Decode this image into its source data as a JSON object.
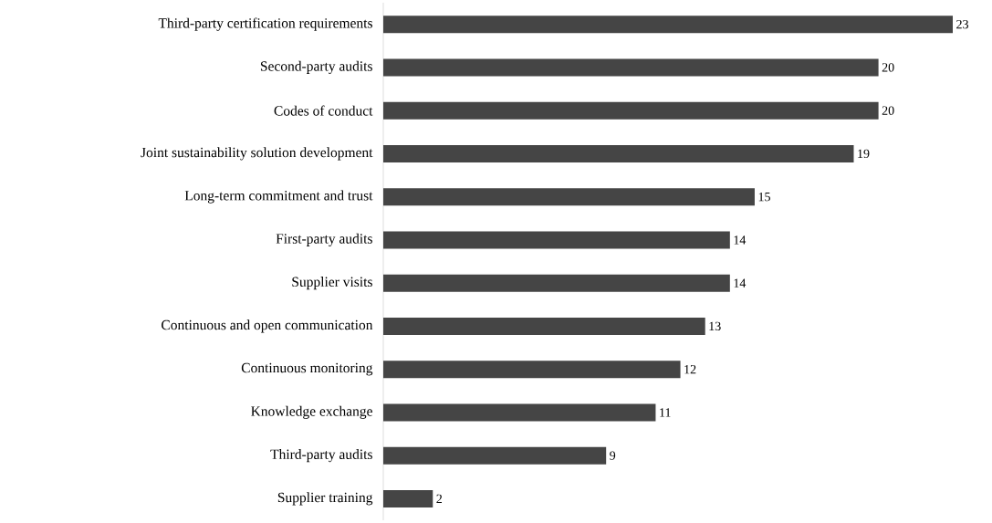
{
  "chart_data": {
    "type": "bar",
    "orientation": "horizontal",
    "categories": [
      "Third-party certification requirements",
      "Second-party audits",
      "Codes of conduct",
      "Joint sustainability solution development",
      "Long-term commitment and trust",
      "First-party audits",
      "Supplier visits",
      "Continuous and open communication",
      "Continuous monitoring",
      "Knowledge exchange",
      "Third-party audits",
      "Supplier training"
    ],
    "values": [
      23,
      20,
      20,
      19,
      15,
      14,
      14,
      13,
      12,
      11,
      9,
      2
    ],
    "color": "#454545",
    "data_labels": true
  }
}
